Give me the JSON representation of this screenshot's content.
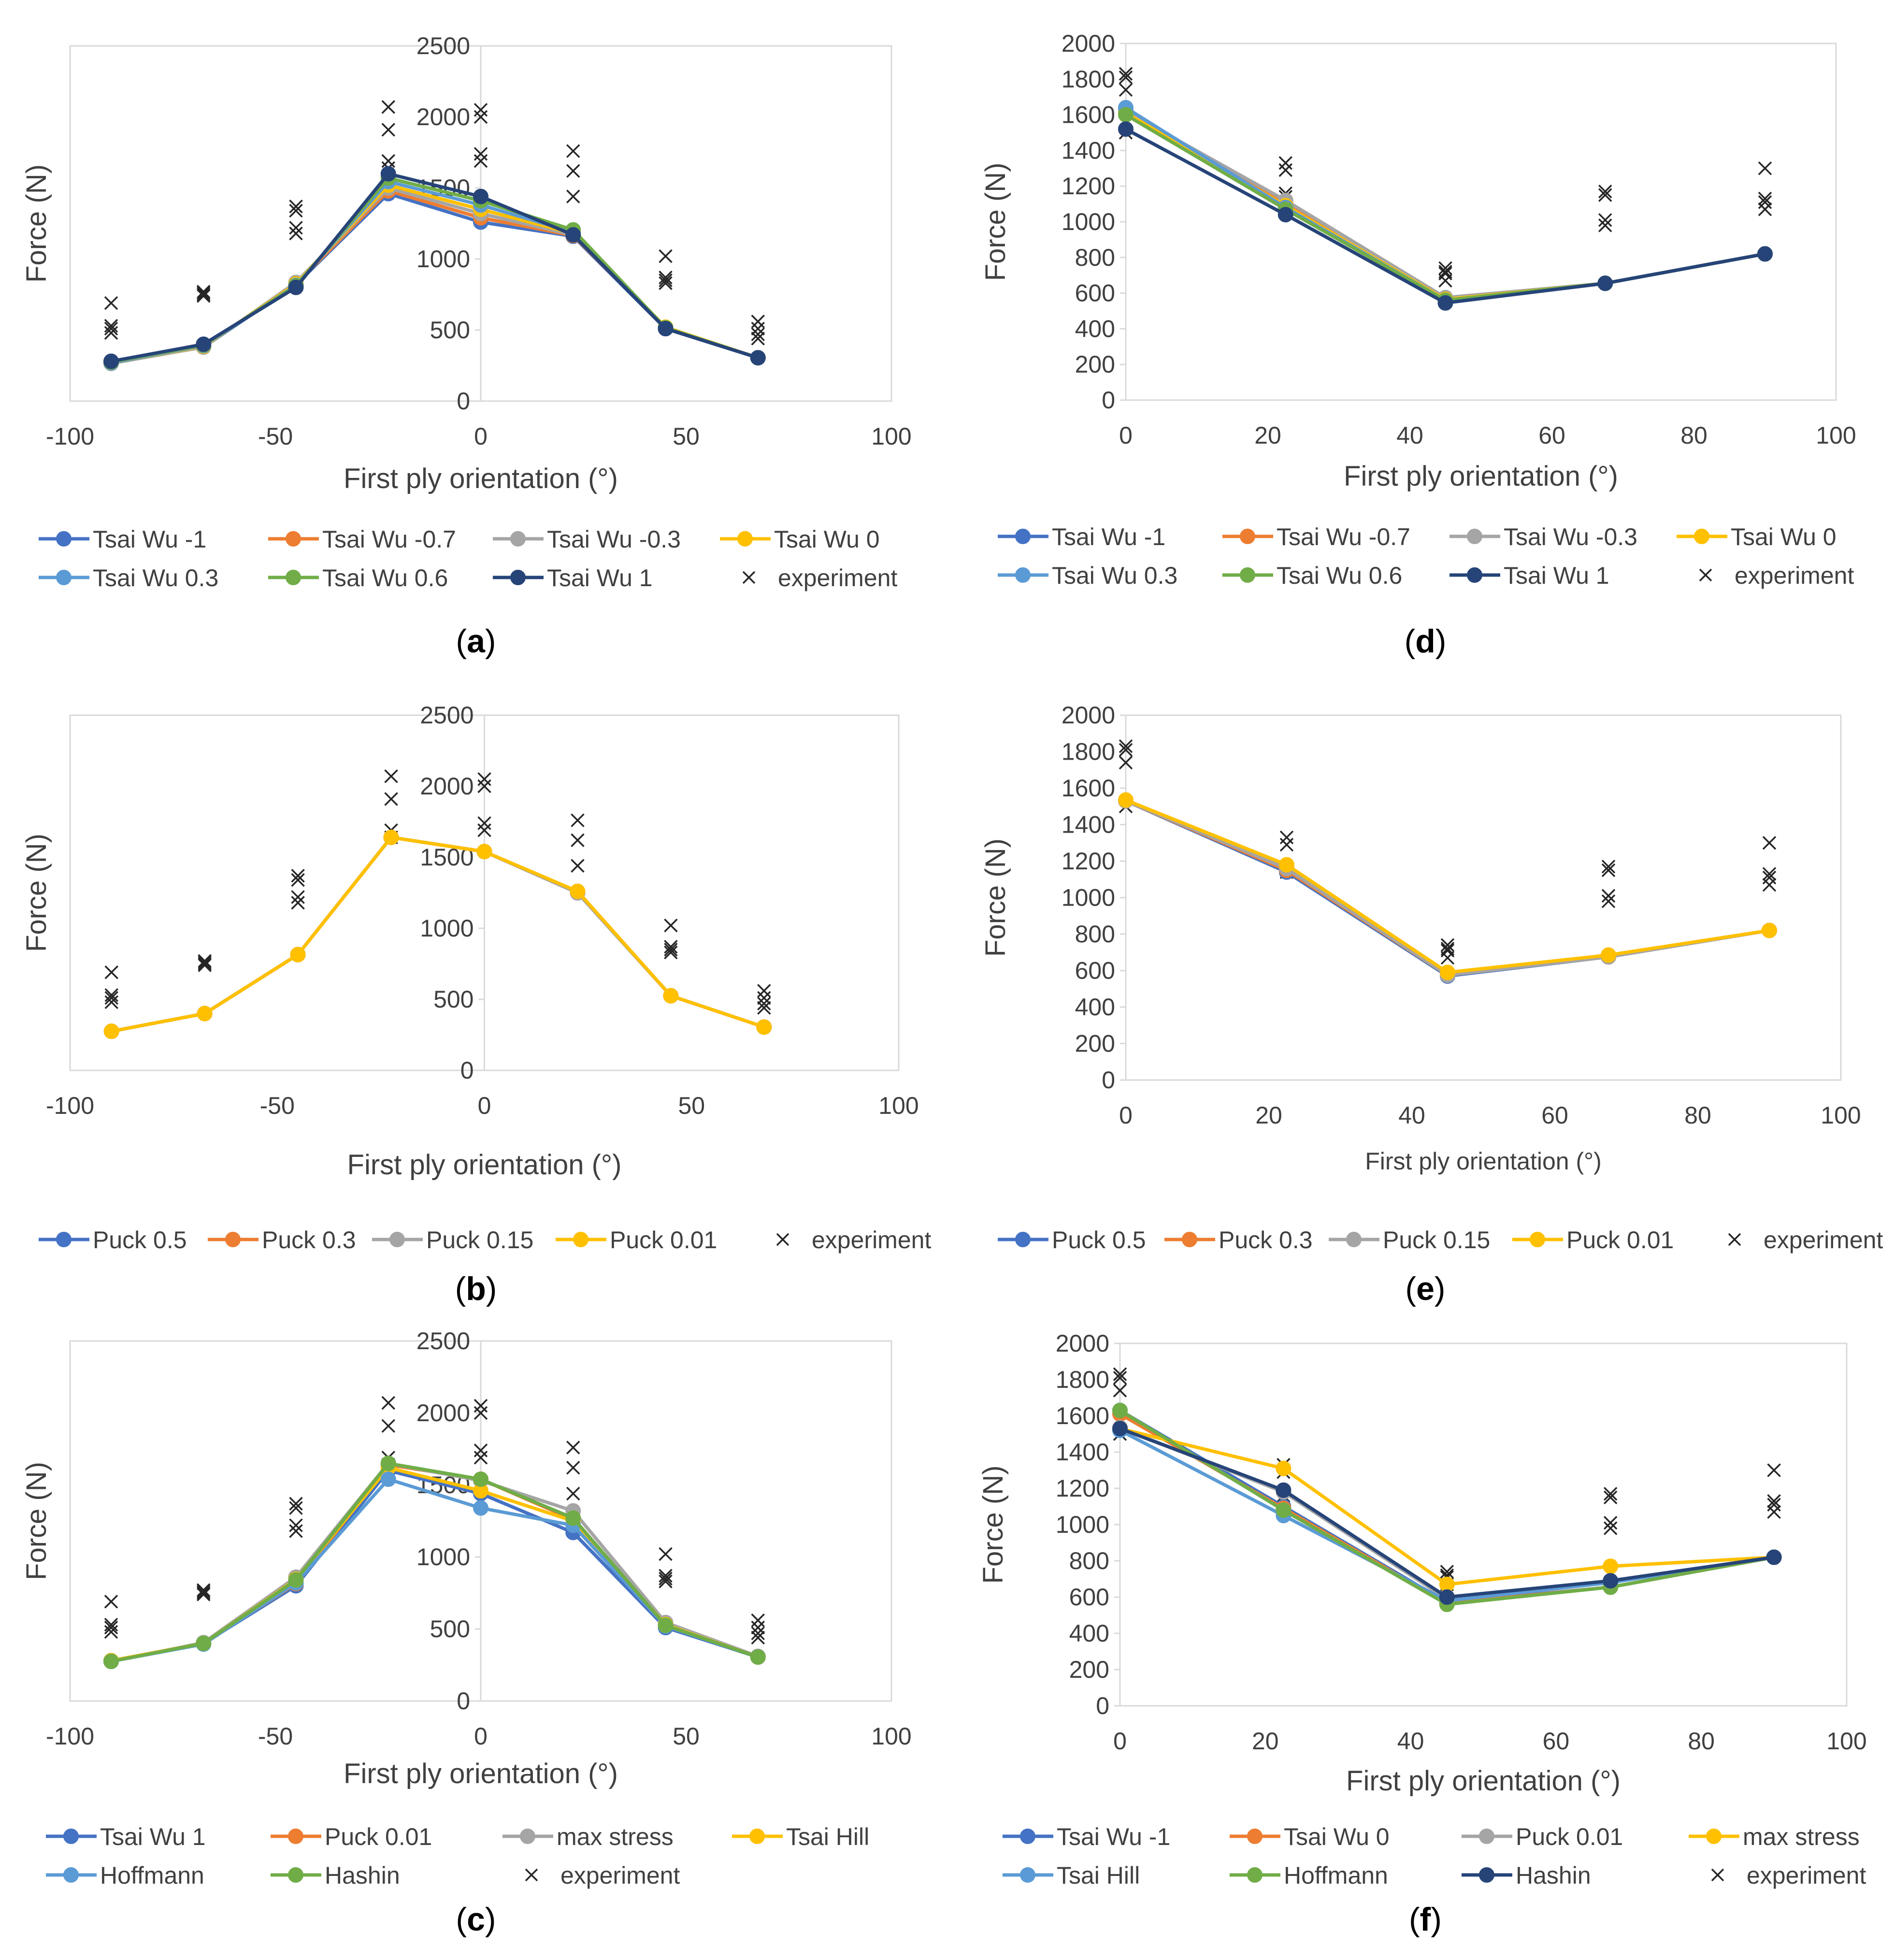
{
  "colors": {
    "tw_m1": "#4472C4",
    "tw_m07": "#ED7D31",
    "tw_m03": "#A5A5A5",
    "tw_0": "#FFC000",
    "tw_03": "#5B9BD5",
    "tw_06": "#70AD47",
    "tw_1": "#264478",
    "axis": "#D9D9D9",
    "text": "#404040",
    "marker": "#262626"
  },
  "chart_data": [
    {
      "id": "a",
      "panel_label": "a",
      "type": "line",
      "xlabel": "First ply orientation (°)",
      "ylabel": "Force (N)",
      "xlim": [
        -100,
        100
      ],
      "ylim": [
        0,
        2500
      ],
      "xticks": [
        "-100",
        "-50",
        "0",
        "50",
        "100"
      ],
      "yticks": [
        "0",
        "500",
        "1000",
        "1500",
        "2000",
        "2500"
      ],
      "x": [
        -90,
        -67.5,
        -45,
        -22.5,
        0,
        22.5,
        45,
        67.5
      ],
      "series": [
        {
          "name": "Tsai Wu -1",
          "color": "#4472C4",
          "values": [
            270,
            380,
            820,
            1460,
            1260,
            1160,
            510,
            305
          ]
        },
        {
          "name": "Tsai Wu -0.7",
          "color": "#ED7D31",
          "values": [
            270,
            385,
            825,
            1480,
            1290,
            1165,
            515,
            305
          ]
        },
        {
          "name": "Tsai Wu -0.3",
          "color": "#A5A5A5",
          "values": [
            265,
            380,
            835,
            1500,
            1320,
            1170,
            520,
            305
          ]
        },
        {
          "name": "Tsai Wu 0",
          "color": "#FFC000",
          "values": [
            270,
            385,
            825,
            1520,
            1350,
            1180,
            520,
            305
          ]
        },
        {
          "name": "Tsai Wu 0.3",
          "color": "#5B9BD5",
          "values": [
            270,
            390,
            815,
            1545,
            1380,
            1190,
            515,
            305
          ]
        },
        {
          "name": "Tsai Wu 0.6",
          "color": "#70AD47",
          "values": [
            275,
            395,
            810,
            1570,
            1410,
            1205,
            515,
            305
          ]
        },
        {
          "name": "Tsai Wu 1",
          "color": "#264478",
          "values": [
            280,
            400,
            800,
            1600,
            1440,
            1170,
            510,
            305
          ]
        }
      ],
      "experiment": {
        "name": "experiment",
        "x": [
          -90,
          -90,
          -90,
          -90,
          -67.5,
          -67.5,
          -67.5,
          -67.5,
          -45,
          -45,
          -45,
          -45,
          -22.5,
          -22.5,
          -22.5,
          -22.5,
          0,
          0,
          0,
          0,
          22.5,
          22.5,
          22.5,
          45,
          45,
          45,
          45,
          67.5,
          67.5,
          67.5,
          67.5
        ],
        "y": [
          690,
          530,
          510,
          480,
          770,
          750,
          740,
          760,
          1370,
          1340,
          1220,
          1180,
          2070,
          1910,
          1690,
          1640,
          2050,
          2000,
          1740,
          1690,
          1760,
          1620,
          1440,
          1020,
          870,
          850,
          830,
          560,
          510,
          470,
          440
        ]
      },
      "legend": [
        "Tsai Wu -1",
        "Tsai Wu -0.7",
        "Tsai Wu -0.3",
        "Tsai Wu 0",
        "Tsai Wu 0.3",
        "Tsai Wu 0.6",
        "Tsai Wu 1",
        "experiment"
      ]
    },
    {
      "id": "b",
      "panel_label": "b",
      "type": "line",
      "xlabel": "First ply orientation (°)",
      "ylabel": "Force (N)",
      "xlim": [
        -100,
        100
      ],
      "ylim": [
        0,
        2500
      ],
      "xticks": [
        "-100",
        "-50",
        "0",
        "50",
        "100"
      ],
      "yticks": [
        "0",
        "500",
        "1000",
        "1500",
        "2000",
        "2500"
      ],
      "x": [
        -90,
        -67.5,
        -45,
        -22.5,
        0,
        22.5,
        45,
        67.5
      ],
      "series": [
        {
          "name": "Puck 0.5",
          "color": "#4472C4",
          "values": [
            275,
            400,
            815,
            1640,
            1540,
            1250,
            525,
            305
          ]
        },
        {
          "name": "Puck 0.3",
          "color": "#ED7D31",
          "values": [
            275,
            400,
            815,
            1640,
            1540,
            1250,
            525,
            305
          ]
        },
        {
          "name": "Puck 0.15",
          "color": "#A5A5A5",
          "values": [
            275,
            400,
            815,
            1640,
            1540,
            1250,
            525,
            305
          ]
        },
        {
          "name": "Puck 0.01",
          "color": "#FFC000",
          "values": [
            275,
            400,
            815,
            1640,
            1540,
            1260,
            525,
            305
          ]
        }
      ],
      "experiment": {
        "name": "experiment",
        "x": [
          -90,
          -90,
          -90,
          -90,
          -67.5,
          -67.5,
          -67.5,
          -67.5,
          -45,
          -45,
          -45,
          -45,
          -22.5,
          -22.5,
          -22.5,
          -22.5,
          0,
          0,
          0,
          0,
          22.5,
          22.5,
          22.5,
          45,
          45,
          45,
          45,
          67.5,
          67.5,
          67.5,
          67.5
        ],
        "y": [
          690,
          530,
          510,
          480,
          770,
          750,
          740,
          760,
          1370,
          1340,
          1220,
          1180,
          2070,
          1910,
          1690,
          1640,
          2050,
          2000,
          1740,
          1690,
          1760,
          1620,
          1440,
          1020,
          870,
          850,
          830,
          560,
          510,
          470,
          440
        ]
      },
      "legend": [
        "Puck 0.5",
        "Puck 0.3",
        "Puck 0.15",
        "Puck 0.01",
        "experiment"
      ]
    },
    {
      "id": "c",
      "panel_label": "c",
      "type": "line",
      "xlabel": "First ply orientation (°)",
      "ylabel": "Force (N)",
      "xlim": [
        -100,
        100
      ],
      "ylim": [
        0,
        2500
      ],
      "xticks": [
        "-100",
        "-50",
        "0",
        "50",
        "100"
      ],
      "yticks": [
        "0",
        "500",
        "1000",
        "1500",
        "2000",
        "2500"
      ],
      "x": [
        -90,
        -67.5,
        -45,
        -22.5,
        0,
        22.5,
        45,
        67.5
      ],
      "series": [
        {
          "name": "Tsai Wu 1",
          "color": "#4472C4",
          "values": [
            280,
            400,
            800,
            1600,
            1440,
            1170,
            510,
            305
          ]
        },
        {
          "name": "Puck 0.01",
          "color": "#ED7D31",
          "values": [
            275,
            400,
            815,
            1640,
            1540,
            1260,
            525,
            305
          ]
        },
        {
          "name": "max stress",
          "color": "#A5A5A5",
          "values": [
            275,
            405,
            860,
            1650,
            1530,
            1320,
            545,
            310
          ]
        },
        {
          "name": "Tsai Hill",
          "color": "#FFC000",
          "values": [
            280,
            400,
            845,
            1620,
            1460,
            1250,
            530,
            305
          ]
        },
        {
          "name": "Hoffmann",
          "color": "#5B9BD5",
          "values": [
            275,
            395,
            820,
            1540,
            1340,
            1220,
            520,
            305
          ]
        },
        {
          "name": "Hashin",
          "color": "#70AD47",
          "values": [
            275,
            400,
            840,
            1650,
            1540,
            1270,
            525,
            305
          ]
        }
      ],
      "experiment": {
        "name": "experiment",
        "x": [
          -90,
          -90,
          -90,
          -90,
          -67.5,
          -67.5,
          -67.5,
          -67.5,
          -45,
          -45,
          -45,
          -45,
          -22.5,
          -22.5,
          -22.5,
          -22.5,
          0,
          0,
          0,
          0,
          22.5,
          22.5,
          22.5,
          45,
          45,
          45,
          45,
          67.5,
          67.5,
          67.5,
          67.5
        ],
        "y": [
          690,
          530,
          510,
          480,
          770,
          750,
          740,
          760,
          1370,
          1340,
          1220,
          1180,
          2070,
          1910,
          1690,
          1640,
          2050,
          2000,
          1740,
          1690,
          1760,
          1620,
          1440,
          1020,
          870,
          850,
          830,
          560,
          510,
          470,
          440
        ]
      },
      "legend": [
        "Tsai Wu 1",
        "Puck 0.01",
        "max stress",
        "Tsai Hill",
        "Hoffmann",
        "Hashin",
        "experiment"
      ]
    },
    {
      "id": "d",
      "panel_label": "d",
      "type": "line",
      "xlabel": "First ply orientation (°)",
      "ylabel": "Force (N)",
      "xlim": [
        0,
        100
      ],
      "ylim": [
        0,
        2000
      ],
      "xticks": [
        "0",
        "20",
        "40",
        "60",
        "80",
        "100"
      ],
      "yticks": [
        "0",
        "200",
        "400",
        "600",
        "800",
        "1000",
        "1200",
        "1400",
        "1600",
        "1800",
        "2000"
      ],
      "x": [
        0,
        22.5,
        45,
        67.5,
        90
      ],
      "series": [
        {
          "name": "Tsai Wu -1",
          "color": "#4472C4",
          "values": [
            1630,
            1100,
            570,
            655,
            820
          ]
        },
        {
          "name": "Tsai Wu -0.7",
          "color": "#ED7D31",
          "values": [
            1625,
            1110,
            570,
            655,
            820
          ]
        },
        {
          "name": "Tsai Wu -0.3",
          "color": "#A5A5A5",
          "values": [
            1620,
            1120,
            575,
            655,
            820
          ]
        },
        {
          "name": "Tsai Wu 0",
          "color": "#FFC000",
          "values": [
            1610,
            1090,
            565,
            655,
            820
          ]
        },
        {
          "name": "Tsai Wu 0.3",
          "color": "#5B9BD5",
          "values": [
            1640,
            1080,
            560,
            655,
            820
          ]
        },
        {
          "name": "Tsai Wu 0.6",
          "color": "#70AD47",
          "values": [
            1600,
            1070,
            560,
            655,
            820
          ]
        },
        {
          "name": "Tsai Wu 1",
          "color": "#264478",
          "values": [
            1520,
            1040,
            545,
            655,
            820
          ]
        }
      ],
      "experiment": {
        "name": "experiment",
        "x": [
          0,
          0,
          0,
          0,
          22.5,
          22.5,
          22.5,
          22.5,
          45,
          45,
          45,
          45,
          67.5,
          67.5,
          67.5,
          67.5,
          90,
          90,
          90,
          90
        ],
        "y": [
          1830,
          1810,
          1740,
          1500,
          1330,
          1290,
          1160,
          1140,
          740,
          720,
          710,
          670,
          1170,
          1150,
          1010,
          980,
          1300,
          1130,
          1110,
          1070
        ]
      },
      "legend": [
        "Tsai Wu -1",
        "Tsai Wu -0.7",
        "Tsai Wu -0.3",
        "Tsai Wu 0",
        "Tsai Wu 0.3",
        "Tsai Wu 0.6",
        "Tsai Wu 1",
        "experiment"
      ]
    },
    {
      "id": "e",
      "panel_label": "e",
      "type": "line",
      "xlabel": "First ply orientation (°)",
      "ylabel": "Force (N)",
      "xlim": [
        0,
        100
      ],
      "ylim": [
        0,
        2000
      ],
      "xticks": [
        "0",
        "20",
        "40",
        "60",
        "80",
        "100"
      ],
      "yticks": [
        "0",
        "200",
        "400",
        "600",
        "800",
        "1000",
        "1200",
        "1400",
        "1600",
        "1800",
        "2000"
      ],
      "x": [
        0,
        22.5,
        45,
        67.5,
        90
      ],
      "series": [
        {
          "name": "Puck 0.5",
          "color": "#4472C4",
          "values": [
            1530,
            1140,
            570,
            675,
            820
          ]
        },
        {
          "name": "Puck 0.3",
          "color": "#ED7D31",
          "values": [
            1530,
            1150,
            575,
            675,
            820
          ]
        },
        {
          "name": "Puck 0.15",
          "color": "#A5A5A5",
          "values": [
            1530,
            1160,
            575,
            675,
            820
          ]
        },
        {
          "name": "Puck 0.01",
          "color": "#FFC000",
          "values": [
            1535,
            1180,
            590,
            685,
            820
          ]
        }
      ],
      "experiment": {
        "name": "experiment",
        "x": [
          0,
          0,
          0,
          0,
          22.5,
          22.5,
          22.5,
          22.5,
          45,
          45,
          45,
          45,
          67.5,
          67.5,
          67.5,
          67.5,
          90,
          90,
          90,
          90
        ],
        "y": [
          1830,
          1810,
          1740,
          1500,
          1330,
          1290,
          1160,
          1140,
          740,
          720,
          710,
          670,
          1170,
          1150,
          1010,
          980,
          1300,
          1130,
          1110,
          1070
        ]
      },
      "legend": [
        "Puck 0.5",
        "Puck 0.3",
        "Puck 0.15",
        "Puck 0.01",
        "experiment"
      ]
    },
    {
      "id": "f",
      "panel_label": "f",
      "type": "line",
      "xlabel": "First ply orientation (°)",
      "ylabel": "Force (N)",
      "xlim": [
        0,
        100
      ],
      "ylim": [
        0,
        2000
      ],
      "xticks": [
        "0",
        "20",
        "40",
        "60",
        "80",
        "100"
      ],
      "yticks": [
        "0",
        "200",
        "400",
        "600",
        "800",
        "1000",
        "1200",
        "1400",
        "1600",
        "1800",
        "2000"
      ],
      "x": [
        0,
        22.5,
        45,
        67.5,
        90
      ],
      "series": [
        {
          "name": "Tsai Wu -1",
          "color": "#4472C4",
          "values": [
            1630,
            1100,
            570,
            655,
            820
          ]
        },
        {
          "name": "Tsai Wu 0",
          "color": "#ED7D31",
          "values": [
            1610,
            1090,
            565,
            655,
            820
          ]
        },
        {
          "name": "Puck 0.01",
          "color": "#A5A5A5",
          "values": [
            1535,
            1180,
            590,
            685,
            820
          ]
        },
        {
          "name": "max stress",
          "color": "#FFC000",
          "values": [
            1530,
            1310,
            670,
            770,
            820
          ]
        },
        {
          "name": "Tsai Hill",
          "color": "#5B9BD5",
          "values": [
            1520,
            1050,
            580,
            680,
            820
          ]
        },
        {
          "name": "Hoffmann",
          "color": "#70AD47",
          "values": [
            1630,
            1080,
            560,
            655,
            820
          ]
        },
        {
          "name": "Hashin",
          "color": "#264478",
          "values": [
            1530,
            1190,
            600,
            690,
            820
          ]
        }
      ],
      "experiment": {
        "name": "experiment",
        "x": [
          0,
          0,
          0,
          0,
          22.5,
          22.5,
          22.5,
          22.5,
          45,
          45,
          45,
          45,
          67.5,
          67.5,
          67.5,
          67.5,
          90,
          90,
          90,
          90
        ],
        "y": [
          1830,
          1810,
          1740,
          1500,
          1330,
          1290,
          1160,
          1140,
          740,
          720,
          710,
          670,
          1170,
          1150,
          1010,
          980,
          1300,
          1130,
          1110,
          1070
        ]
      },
      "legend": [
        "Tsai Wu -1",
        "Tsai Wu 0",
        "Puck 0.01",
        "max stress",
        "Tsai Hill",
        "Hoffmann",
        "Hashin",
        "experiment"
      ]
    }
  ]
}
